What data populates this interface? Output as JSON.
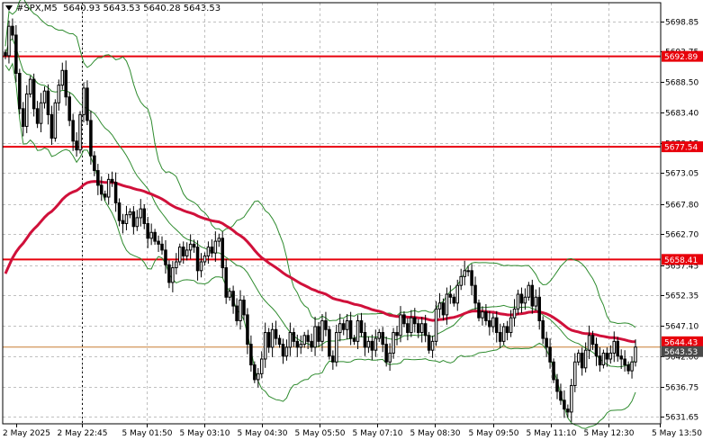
{
  "header": {
    "symbol": "#SPX,M5",
    "ohlc": "5640.93 5643.53 5640.28 5643.53"
  },
  "colors": {
    "candle": "#000000",
    "grid": "#c0c0c0",
    "bollinger": "#2e8b2e",
    "ma": "#d0103a",
    "level": "#e8000b",
    "last_price_line": "#c87d32",
    "level_tag_bg": "#e8000b",
    "price_tag_bg": "#4a4a4a"
  },
  "chart_data": {
    "type": "candlestick",
    "y_ticks": [
      "5698.85",
      "5693.75",
      "5688.50",
      "5683.40",
      "5678.15",
      "5673.05",
      "5667.80",
      "5662.70",
      "5657.45",
      "5652.35",
      "5647.10",
      "5642.00",
      "5636.75",
      "5631.65"
    ],
    "x_ticks": [
      "2 May 2025",
      "2 May 22:45",
      "5 May 01:50",
      "5 May 03:10",
      "5 May 04:30",
      "5 May 05:50",
      "5 May 07:10",
      "5 May 08:30",
      "5 May 09:50",
      "5 May 11:10",
      "5 May 12:30",
      "5 May 13:50"
    ],
    "ylim": [
      5630.5,
      5702.0
    ],
    "levels": [
      {
        "label": "5692.89",
        "value": 5692.89
      },
      {
        "label": "5677.54",
        "value": 5677.54
      },
      {
        "label": "5658.41",
        "value": 5658.41
      }
    ],
    "last_price": {
      "label": "5643.53",
      "value": 5643.53
    },
    "hidden_tag": {
      "label": "5644.43",
      "value": 5644.43
    },
    "closes": [
      5693.0,
      5698.0,
      5696.5,
      5690.0,
      5684.0,
      5681.0,
      5686.5,
      5689.0,
      5684.0,
      5681.5,
      5685.0,
      5687.0,
      5683.0,
      5679.0,
      5685.0,
      5688.0,
      5690.5,
      5686.0,
      5682.0,
      5678.5,
      5677.0,
      5683.0,
      5687.5,
      5682.0,
      5676.0,
      5673.5,
      5671.0,
      5669.5,
      5669.0,
      5672.0,
      5671.5,
      5668.0,
      5665.0,
      5664.5,
      5666.0,
      5666.5,
      5664.0,
      5665.5,
      5667.0,
      5664.5,
      5662.0,
      5663.0,
      5661.5,
      5661.0,
      5660.0,
      5657.5,
      5654.5,
      5657.0,
      5658.0,
      5660.5,
      5659.0,
      5660.0,
      5661.0,
      5660.5,
      5656.5,
      5658.0,
      5659.0,
      5660.5,
      5659.5,
      5661.5,
      5662.0,
      5657.0,
      5652.0,
      5653.0,
      5650.5,
      5648.0,
      5651.5,
      5649.0,
      5644.0,
      5640.5,
      5638.0,
      5639.0,
      5641.5,
      5646.0,
      5643.5,
      5646.5,
      5645.0,
      5644.0,
      5642.0,
      5643.5,
      5646.0,
      5644.5,
      5643.5,
      5644.0,
      5645.5,
      5644.5,
      5643.5,
      5647.0,
      5644.5,
      5648.0,
      5646.5,
      5642.0,
      5641.0,
      5646.0,
      5647.5,
      5646.5,
      5648.0,
      5645.0,
      5644.5,
      5648.0,
      5646.0,
      5643.5,
      5644.5,
      5643.0,
      5645.0,
      5646.0,
      5644.0,
      5641.0,
      5642.5,
      5646.0,
      5645.5,
      5649.0,
      5647.5,
      5646.0,
      5648.5,
      5647.5,
      5646.0,
      5647.5,
      5645.5,
      5643.0,
      5644.5,
      5650.0,
      5651.0,
      5649.0,
      5652.5,
      5652.0,
      5651.0,
      5654.0,
      5655.5,
      5656.5,
      5656.5,
      5654.0,
      5651.0,
      5648.5,
      5649.5,
      5648.0,
      5647.0,
      5648.5,
      5646.0,
      5644.5,
      5647.0,
      5646.0,
      5648.5,
      5650.0,
      5652.5,
      5651.0,
      5652.0,
      5654.0,
      5650.5,
      5652.0,
      5648.0,
      5645.0,
      5643.5,
      5641.0,
      5638.0,
      5636.0,
      5634.5,
      5633.0,
      5632.5,
      5637.0,
      5641.0,
      5642.5,
      5640.0,
      5643.0,
      5645.5,
      5644.0,
      5642.0,
      5640.5,
      5642.5,
      5641.5,
      5642.5,
      5644.5,
      5642.0,
      5641.5,
      5640.5,
      5639.5,
      5641.0,
      5643.53
    ]
  }
}
